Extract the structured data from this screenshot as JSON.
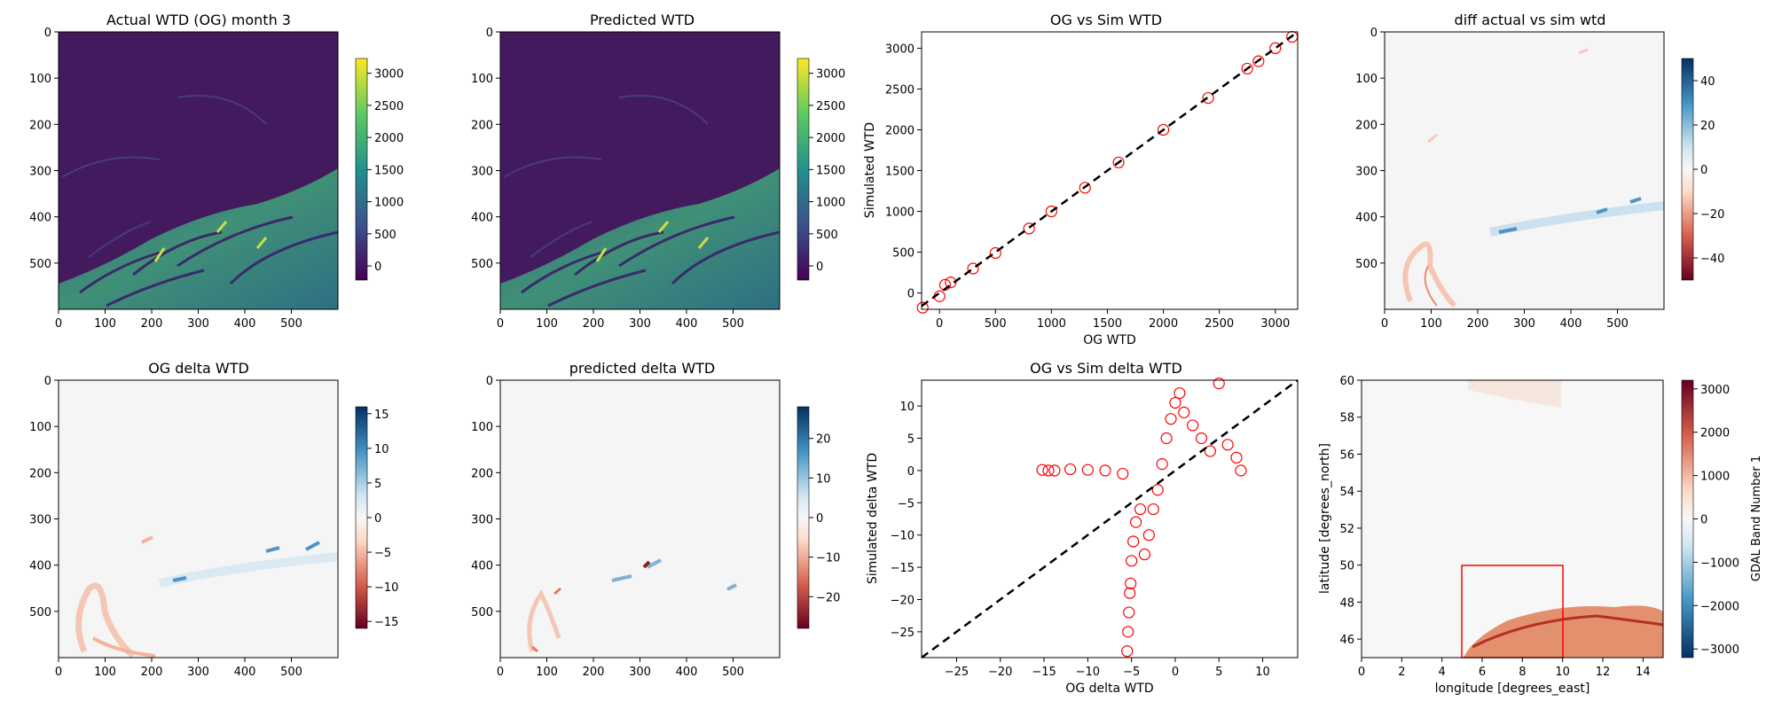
{
  "figure": {
    "panels": [
      {
        "title": "Actual WTD (OG) month 3"
      },
      {
        "title": "Predicted WTD"
      },
      {
        "title": "OG vs Sim WTD"
      },
      {
        "title": "diff actual vs sim wtd"
      },
      {
        "title": "OG delta WTD"
      },
      {
        "title": "predicted delta WTD"
      },
      {
        "title": "OG vs Sim delta WTD"
      },
      {
        "title": ""
      }
    ]
  },
  "chart_data": [
    {
      "type": "heatmap",
      "title": "Actual WTD (OG) month 3",
      "xlabel": "",
      "ylabel": "",
      "xlim": [
        0,
        600
      ],
      "ylim": [
        600,
        0
      ],
      "xticks": [
        "0",
        "100",
        "200",
        "300",
        "400",
        "500"
      ],
      "yticks": [
        "0",
        "100",
        "200",
        "300",
        "400",
        "500"
      ],
      "colormap": "viridis",
      "colorbar": {
        "range": [
          -220,
          3230
        ],
        "ticks": [
          "0",
          "500",
          "1000",
          "1500",
          "2000",
          "2500",
          "3000"
        ]
      }
    },
    {
      "type": "heatmap",
      "title": "Predicted WTD",
      "xlabel": "",
      "ylabel": "",
      "xlim": [
        0,
        600
      ],
      "ylim": [
        600,
        0
      ],
      "xticks": [
        "0",
        "100",
        "200",
        "300",
        "400",
        "500"
      ],
      "yticks": [
        "0",
        "100",
        "200",
        "300",
        "400",
        "500"
      ],
      "colormap": "viridis",
      "colorbar": {
        "range": [
          -220,
          3230
        ],
        "ticks": [
          "0",
          "500",
          "1000",
          "1500",
          "2000",
          "2500",
          "3000"
        ]
      }
    },
    {
      "type": "scatter",
      "title": "OG vs Sim WTD",
      "xlabel": "OG WTD",
      "ylabel": "Simulated WTD",
      "xlim": [
        -160,
        3200
      ],
      "ylim": [
        -200,
        3200
      ],
      "xticks": [
        "0",
        "500",
        "1000",
        "1500",
        "2000",
        "2500",
        "3000"
      ],
      "yticks": [
        "0",
        "500",
        "1000",
        "1500",
        "2000",
        "2500",
        "3000"
      ],
      "marker_color": "#ff0000",
      "reference_line": "y = x (dashed black)",
      "x": [
        -150,
        0,
        50,
        100,
        300,
        500,
        800,
        1000,
        1300,
        1600,
        2000,
        2400,
        2750,
        2850,
        3000,
        3150
      ],
      "y": [
        -180,
        -40,
        100,
        130,
        300,
        490,
        790,
        1000,
        1290,
        1600,
        2000,
        2390,
        2750,
        2840,
        3000,
        3140
      ]
    },
    {
      "type": "heatmap",
      "title": "diff actual vs sim wtd",
      "xlabel": "",
      "ylabel": "",
      "xlim": [
        0,
        600
      ],
      "ylim": [
        600,
        0
      ],
      "xticks": [
        "0",
        "100",
        "200",
        "300",
        "400",
        "500"
      ],
      "yticks": [
        "0",
        "100",
        "200",
        "300",
        "400",
        "500"
      ],
      "colormap": "RdBu",
      "colorbar": {
        "range": [
          -50,
          50
        ],
        "ticks": [
          "−40",
          "−20",
          "0",
          "20",
          "40"
        ]
      }
    },
    {
      "type": "heatmap",
      "title": "OG delta WTD",
      "xlabel": "",
      "ylabel": "",
      "xlim": [
        0,
        600
      ],
      "ylim": [
        600,
        0
      ],
      "xticks": [
        "0",
        "100",
        "200",
        "300",
        "400",
        "500"
      ],
      "yticks": [
        "0",
        "100",
        "200",
        "300",
        "400",
        "500"
      ],
      "colormap": "RdBu",
      "colorbar": {
        "range": [
          -16,
          16
        ],
        "ticks": [
          "−15",
          "−10",
          "−5",
          "0",
          "5",
          "10",
          "15"
        ]
      }
    },
    {
      "type": "heatmap",
      "title": "predicted delta WTD",
      "xlabel": "",
      "ylabel": "",
      "xlim": [
        0,
        600
      ],
      "ylim": [
        600,
        0
      ],
      "xticks": [
        "0",
        "100",
        "200",
        "300",
        "400",
        "500"
      ],
      "yticks": [
        "0",
        "100",
        "200",
        "300",
        "400",
        "500"
      ],
      "colormap": "RdBu",
      "colorbar": {
        "range": [
          -28,
          28
        ],
        "ticks": [
          "−20",
          "−10",
          "0",
          "10",
          "20"
        ]
      }
    },
    {
      "type": "scatter",
      "title": "OG vs Sim delta WTD",
      "xlabel": "OG delta WTD",
      "ylabel": "Simulated delta WTD",
      "xlim": [
        -29,
        14
      ],
      "ylim": [
        -29,
        14
      ],
      "xticks": [
        "−25",
        "−20",
        "−15",
        "−10",
        "−5",
        "0",
        "5",
        "10"
      ],
      "yticks": [
        "−25",
        "−20",
        "−15",
        "−10",
        "−5",
        "0",
        "5",
        "10"
      ],
      "marker_color": "#ff0000",
      "reference_line": "y = x (dashed black)",
      "x": [
        -15.2,
        -14.5,
        -13.8,
        -12.0,
        -10.0,
        -8.0,
        -6.0,
        -5.5,
        -5.4,
        -5.3,
        -5.2,
        -5.1,
        -5.0,
        -4.8,
        -4.5,
        -4.0,
        -3.5,
        -3.0,
        -2.5,
        -2.0,
        -1.5,
        -1.0,
        -0.5,
        0.0,
        0.5,
        1.0,
        2.0,
        3.0,
        4.0,
        5.0,
        6.0,
        7.0,
        7.5
      ],
      "y": [
        0.1,
        0.0,
        0.0,
        0.2,
        0.1,
        0.0,
        -0.5,
        -28.0,
        -25.0,
        -22.0,
        -19.0,
        -17.5,
        -14.0,
        -11.0,
        -8.0,
        -6.0,
        -13.0,
        -10.0,
        -6.0,
        -3.0,
        1.0,
        5.0,
        8.0,
        10.5,
        12.0,
        9.0,
        7.0,
        5.0,
        3.0,
        13.5,
        4.0,
        2.0,
        0.0
      ]
    },
    {
      "type": "heatmap",
      "title": "",
      "xlabel": "longitude [degrees_east]",
      "ylabel": "latitude [degrees_north]",
      "xlim": [
        0,
        15
      ],
      "ylim": [
        45,
        60
      ],
      "xticks": [
        "0",
        "2",
        "4",
        "6",
        "8",
        "10",
        "12",
        "14"
      ],
      "yticks": [
        "46",
        "48",
        "50",
        "52",
        "54",
        "56",
        "58",
        "60"
      ],
      "colormap": "RdBu_r",
      "colorbar": {
        "label": "GDAL Band Number 1",
        "range": [
          -3200,
          3200
        ],
        "ticks": [
          "−3000",
          "−2000",
          "−1000",
          "0",
          "1000",
          "2000",
          "3000"
        ]
      },
      "highlight_box": {
        "lon": [
          5,
          10
        ],
        "lat": [
          45,
          50
        ],
        "color": "#ff0000"
      }
    }
  ]
}
